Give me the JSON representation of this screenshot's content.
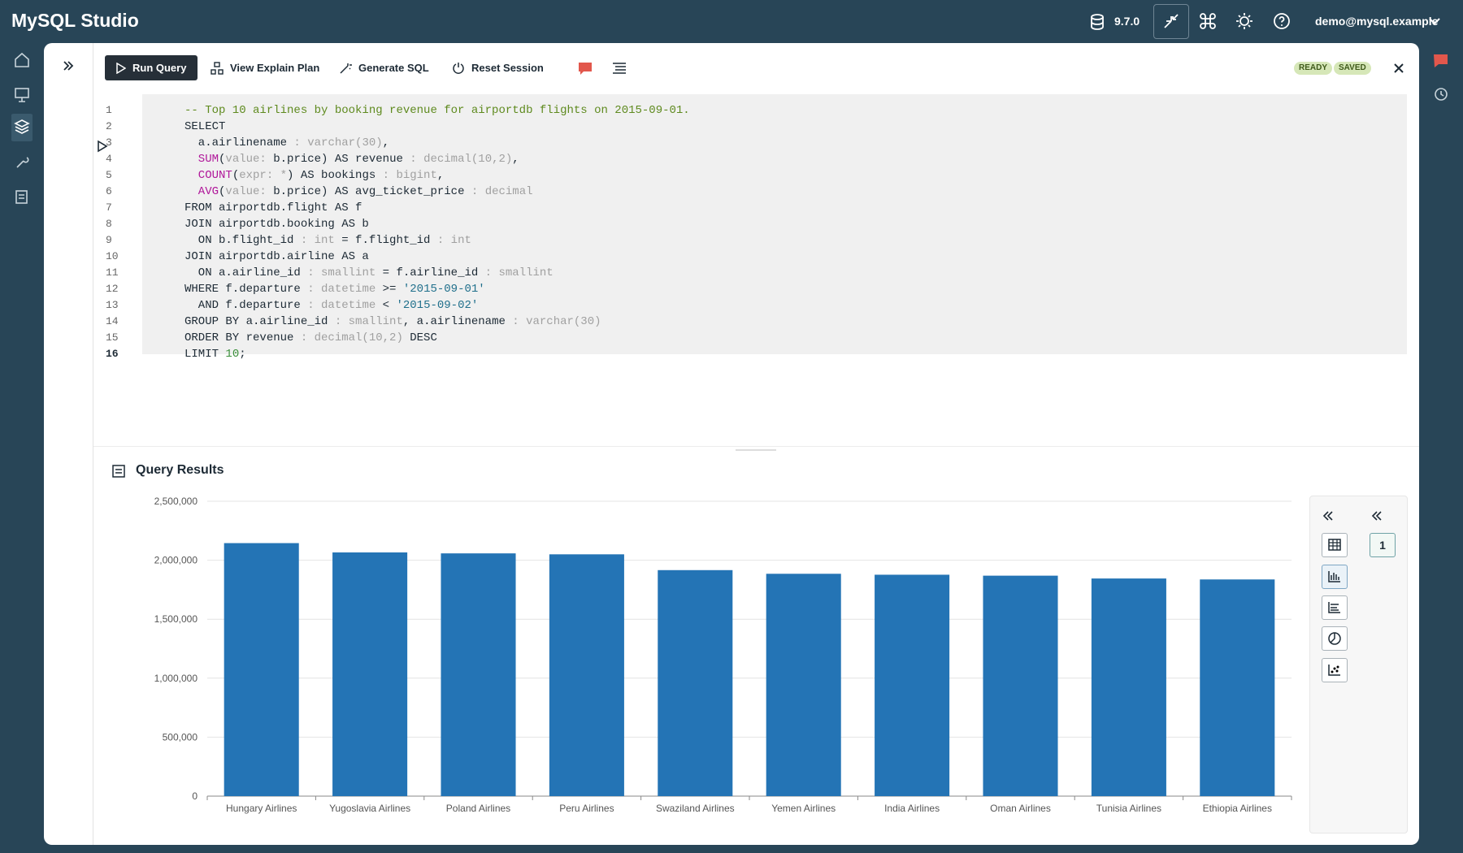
{
  "app": {
    "title": "MySQL Studio",
    "version": "9.7.0",
    "user": "demo@mysql.example"
  },
  "toolbar": {
    "buttons": [
      "Run Query",
      "View Explain Plan",
      "Generate SQL",
      "Reset Session"
    ],
    "badges": [
      "READY",
      "SAVED"
    ]
  },
  "editor": {
    "lines": [
      {
        "number": 1,
        "tokens": [
          {
            "text": "-- Top 10 airlines by booking revenue for airportdb flights on 2015-09-01.",
            "color": "#5e8a1e"
          }
        ]
      },
      {
        "number": 2,
        "tokens": [
          {
            "text": "SELECT",
            "color": "#1d2a35"
          }
        ]
      },
      {
        "number": 3,
        "tokens": [
          {
            "text": "  a.airlinename",
            "color": "#1d2a35"
          },
          {
            "text": " : varchar(30)",
            "color": "#a0a0a0"
          },
          {
            "text": ",",
            "color": "#1d2a35"
          }
        ]
      },
      {
        "number": 4,
        "tokens": [
          {
            "text": "  SUM",
            "color": "#b0179a"
          },
          {
            "text": "(",
            "color": "#1d2a35"
          },
          {
            "text": "value:",
            "color": "#a0a0a0"
          },
          {
            "text": " b.price) AS revenue",
            "color": "#1d2a35"
          },
          {
            "text": " : decimal(10,2)",
            "color": "#a0a0a0"
          },
          {
            "text": ",",
            "color": "#1d2a35"
          }
        ]
      },
      {
        "number": 5,
        "tokens": [
          {
            "text": "  COUNT",
            "color": "#b0179a"
          },
          {
            "text": "(",
            "color": "#1d2a35"
          },
          {
            "text": "expr: *",
            "color": "#a0a0a0"
          },
          {
            "text": ") AS bookings",
            "color": "#1d2a35"
          },
          {
            "text": " : bigint",
            "color": "#a0a0a0"
          },
          {
            "text": ",",
            "color": "#1d2a35"
          }
        ]
      },
      {
        "number": 6,
        "tokens": [
          {
            "text": "  AVG",
            "color": "#b0179a"
          },
          {
            "text": "(",
            "color": "#1d2a35"
          },
          {
            "text": "value:",
            "color": "#a0a0a0"
          },
          {
            "text": " b.price) AS avg_ticket_price",
            "color": "#1d2a35"
          },
          {
            "text": " : decimal",
            "color": "#a0a0a0"
          }
        ]
      },
      {
        "number": 7,
        "tokens": [
          {
            "text": "FROM airportdb.flight AS f",
            "color": "#1d2a35"
          }
        ]
      },
      {
        "number": 8,
        "tokens": [
          {
            "text": "JOIN airportdb.booking AS b",
            "color": "#1d2a35"
          }
        ]
      },
      {
        "number": 9,
        "tokens": [
          {
            "text": "  ON b.flight_id",
            "color": "#1d2a35"
          },
          {
            "text": " : int",
            "color": "#a0a0a0"
          },
          {
            "text": " = f.flight_id",
            "color": "#1d2a35"
          },
          {
            "text": " : int",
            "color": "#a0a0a0"
          }
        ]
      },
      {
        "number": 10,
        "tokens": [
          {
            "text": "JOIN airportdb.airline AS a",
            "color": "#1d2a35"
          }
        ]
      },
      {
        "number": 11,
        "tokens": [
          {
            "text": "  ON a.airline_id",
            "color": "#1d2a35"
          },
          {
            "text": " : smallint",
            "color": "#a0a0a0"
          },
          {
            "text": " = f.airline_id",
            "color": "#1d2a35"
          },
          {
            "text": " : smallint",
            "color": "#a0a0a0"
          }
        ]
      },
      {
        "number": 12,
        "tokens": [
          {
            "text": "WHERE f.departure",
            "color": "#1d2a35"
          },
          {
            "text": " : datetime",
            "color": "#a0a0a0"
          },
          {
            "text": " >= ",
            "color": "#1d2a35"
          },
          {
            "text": "'2015-09-01'",
            "color": "#1f6f8b"
          }
        ]
      },
      {
        "number": 13,
        "tokens": [
          {
            "text": "  AND f.departure",
            "color": "#1d2a35"
          },
          {
            "text": " : datetime",
            "color": "#a0a0a0"
          },
          {
            "text": " < ",
            "color": "#1d2a35"
          },
          {
            "text": "'2015-09-02'",
            "color": "#1f6f8b"
          }
        ]
      },
      {
        "number": 14,
        "tokens": [
          {
            "text": "GROUP BY a.airline_id",
            "color": "#1d2a35"
          },
          {
            "text": " : smallint",
            "color": "#a0a0a0"
          },
          {
            "text": ", a.airlinename",
            "color": "#1d2a35"
          },
          {
            "text": " : varchar(30)",
            "color": "#a0a0a0"
          }
        ]
      },
      {
        "number": 15,
        "tokens": [
          {
            "text": "ORDER BY revenue",
            "color": "#1d2a35"
          },
          {
            "text": " : decimal(10,2)",
            "color": "#a0a0a0"
          },
          {
            "text": " DESC",
            "color": "#1d2a35"
          }
        ]
      },
      {
        "number": 16,
        "tokens": [
          {
            "text": "LIMIT ",
            "color": "#1d2a35"
          },
          {
            "text": "10",
            "color": "#3a8f3a"
          },
          {
            "text": ";",
            "color": "#1d2a35"
          }
        ]
      }
    ]
  },
  "results": {
    "title": "Query Results",
    "page": 1
  },
  "chart_data": {
    "type": "bar",
    "categories": [
      "Hungary Airlines",
      "Yugoslavia Airlines",
      "Poland Airlines",
      "Peru Airlines",
      "Swaziland Airlines",
      "Yemen Airlines",
      "India Airlines",
      "Oman Airlines",
      "Tunisia Airlines",
      "Ethiopia Airlines"
    ],
    "values": [
      2145000,
      2066000,
      2058000,
      2050000,
      1916000,
      1885000,
      1877000,
      1869000,
      1845000,
      1837000
    ],
    "color": "#2474b5",
    "ylim": [
      0,
      2500000
    ],
    "yticks": [
      0,
      {
        "value": 500000,
        "label": "500,000"
      },
      {
        "value": 1000000,
        "label": "1,000,000"
      },
      {
        "value": 1500000,
        "label": "1,500,000"
      },
      {
        "value": 2000000,
        "label": "2,000,000"
      },
      {
        "value": 2500000,
        "label": "2,500,000"
      }
    ],
    "grid": true
  }
}
